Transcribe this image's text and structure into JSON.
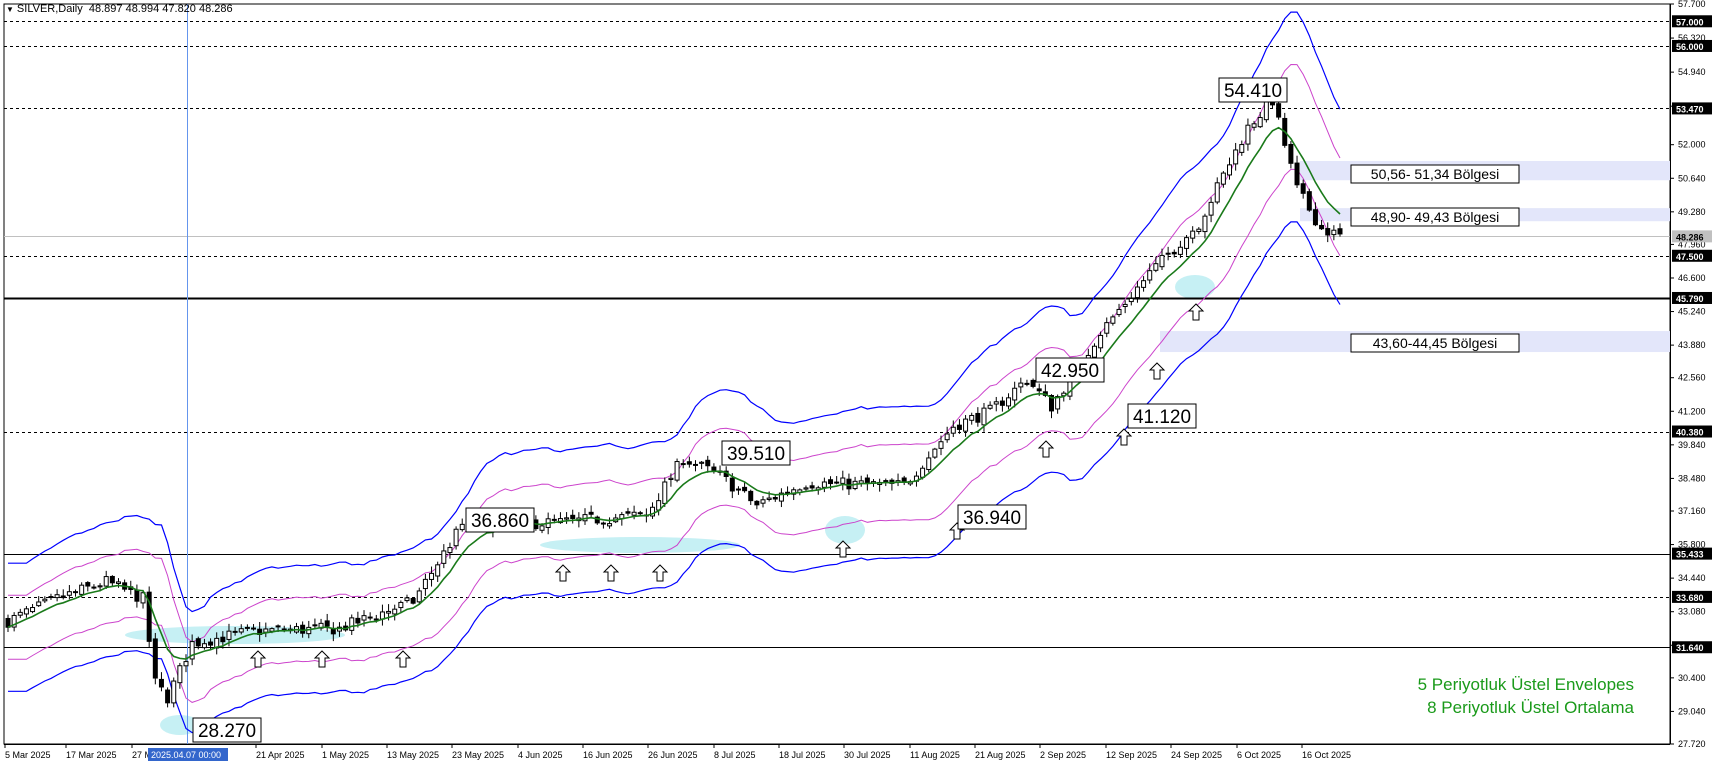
{
  "window": {
    "symbol_title": "SILVER,Daily",
    "ohlc": "48.897 48.994 47.820 48.286"
  },
  "chart_data": {
    "type": "candlestick",
    "symbol": "SILVER",
    "timeframe": "Daily",
    "price_axis": {
      "min": 27.72,
      "max": 57.7,
      "ticks": [
        "57.700",
        "56.320",
        "54.940",
        "53.560",
        "52.000",
        "50.640",
        "49.280",
        "47.960",
        "46.600",
        "45.240",
        "43.880",
        "42.560",
        "41.200",
        "39.840",
        "38.480",
        "37.160",
        "35.800",
        "34.440",
        "33.080",
        "31.720",
        "30.400",
        "29.040",
        "27.720"
      ]
    },
    "time_axis": {
      "ticks": [
        "5 Mar 2025",
        "17 Mar 2025",
        "27 M",
        "21 Apr 2025",
        "1 May 2025",
        "13 May 2025",
        "23 May 2025",
        "4 Jun 2025",
        "16 Jun 2025",
        "26 Jun 2025",
        "8 Jul 2025",
        "18 Jul 2025",
        "30 Jul 2025",
        "11 Aug 2025",
        "21 Aug 2025",
        "2 Sep 2025",
        "12 Sep 2025",
        "24 Sep 2025",
        "6 Oct 2025",
        "16 Oct 2025"
      ],
      "cursor_label": "2025.04.07 00:00"
    },
    "horizontal_levels": [
      {
        "price": 57.0,
        "label": "57.000",
        "style": "dashed"
      },
      {
        "price": 56.0,
        "label": "56.000",
        "style": "dashed"
      },
      {
        "price": 53.47,
        "label": "53.470",
        "style": "dashed"
      },
      {
        "price": 47.5,
        "label": "47.500",
        "style": "dashed"
      },
      {
        "price": 45.79,
        "label": "45.790",
        "style": "solid-bold"
      },
      {
        "price": 40.38,
        "label": "40.380",
        "style": "dashed"
      },
      {
        "price": 35.433,
        "label": "35.433",
        "style": "solid"
      },
      {
        "price": 33.68,
        "label": "33.680",
        "style": "dashed"
      },
      {
        "price": 31.64,
        "label": "31.640",
        "style": "solid"
      }
    ],
    "current_price": {
      "value": 48.286,
      "label": "48.286"
    },
    "zones": [
      {
        "label": "50,56- 51,34 Bölgesi",
        "low": 50.56,
        "high": 51.34
      },
      {
        "label": "48,90- 49,43 Bölgesi",
        "low": 48.9,
        "high": 49.43
      },
      {
        "label": "43,60-44,45 Bölgesi",
        "low": 43.6,
        "high": 44.45
      }
    ],
    "price_labels": [
      {
        "text": "54.410",
        "price": 54.41
      },
      {
        "text": "39.510",
        "price": 39.51
      },
      {
        "text": "36.860",
        "price": 36.86
      },
      {
        "text": "36.940",
        "price": 36.94
      },
      {
        "text": "42.950",
        "price": 42.95
      },
      {
        "text": "41.120",
        "price": 41.12
      },
      {
        "text": "28.270",
        "price": 28.27
      }
    ],
    "indicators": [
      {
        "name": "5 Periyotluk Üstel Envelopes",
        "color": "#1a9a1a"
      },
      {
        "name": "8 Periyotluk Üstel Ortalama",
        "color": "#1a9a1a"
      }
    ],
    "colors": {
      "ema": "#1a7a1a",
      "envelope_outer": "#0000ff",
      "envelope_inner": "#cc44cc",
      "zone": "#e3e6fa",
      "support_highlight": "#c6f0f4",
      "cursor": "#6495ed",
      "axis_tag": "#000000"
    }
  }
}
